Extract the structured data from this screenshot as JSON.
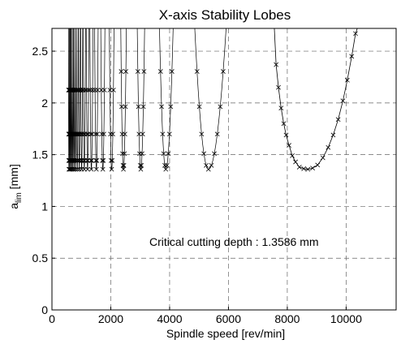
{
  "chart_data": {
    "type": "line",
    "title": "X-axis Stability Lobes",
    "xlabel": "Spindle speed [rev/min]",
    "ylabel_main": "a",
    "ylabel_sub": "lim",
    "ylabel_unit": "[mm]",
    "xlim": [
      0,
      11700
    ],
    "ylim": [
      0,
      2.72
    ],
    "xticks": [
      0,
      2000,
      4000,
      6000,
      8000,
      10000
    ],
    "yticks": [
      0,
      0.5,
      1,
      1.5,
      2,
      2.5
    ],
    "xtick_labels": [
      "0",
      "2000",
      "4000",
      "6000",
      "8000",
      "10000"
    ],
    "ytick_labels": [
      "0",
      "0.5",
      "1",
      "1.5",
      "2",
      "2.5"
    ],
    "grid": true,
    "grid_style": "dashed",
    "marker": "x",
    "min_depth": 1.3586,
    "annotation": "Critical cutting depth : 1.3586 mm",
    "lobes": [
      {
        "left": 4855,
        "center": 5320,
        "right": 5920
      },
      {
        "left": 3655,
        "center": 3870,
        "right": 4120
      },
      {
        "left": 2900,
        "center": 3020,
        "right": 3150
      },
      {
        "left": 2340,
        "center": 2430,
        "right": 2530
      },
      {
        "left": 1950,
        "center": 2030,
        "right": 2110
      },
      {
        "left": 1660,
        "center": 1730,
        "right": 1800
      },
      {
        "left": 1450,
        "center": 1510,
        "right": 1570
      },
      {
        "left": 1290,
        "center": 1340,
        "right": 1395
      },
      {
        "left": 1165,
        "center": 1210,
        "right": 1255
      },
      {
        "left": 1060,
        "center": 1100,
        "right": 1140
      },
      {
        "left": 975,
        "center": 1010,
        "right": 1045
      },
      {
        "left": 900,
        "center": 930,
        "right": 960
      },
      {
        "left": 835,
        "center": 865,
        "right": 893
      },
      {
        "left": 780,
        "center": 805,
        "right": 832
      },
      {
        "left": 732,
        "center": 755,
        "right": 778
      },
      {
        "left": 690,
        "center": 710,
        "right": 731
      },
      {
        "left": 652,
        "center": 670,
        "right": 690
      },
      {
        "left": 618,
        "center": 635,
        "right": 653
      },
      {
        "left": 588,
        "center": 603,
        "right": 620
      },
      {
        "left": 560,
        "center": 575,
        "right": 590
      }
    ],
    "big_lobe": {
      "points": [
        [
          7560,
          2.72
        ],
        [
          7620,
          2.37
        ],
        [
          7700,
          2.15
        ],
        [
          7790,
          1.95
        ],
        [
          7880,
          1.8
        ],
        [
          7960,
          1.69
        ],
        [
          8060,
          1.59
        ],
        [
          8170,
          1.49
        ],
        [
          8280,
          1.43
        ],
        [
          8410,
          1.38
        ],
        [
          8560,
          1.365
        ],
        [
          8700,
          1.3586
        ],
        [
          8860,
          1.37
        ],
        [
          9030,
          1.4
        ],
        [
          9210,
          1.47
        ],
        [
          9390,
          1.57
        ],
        [
          9560,
          1.69
        ],
        [
          9730,
          1.84
        ],
        [
          9890,
          2.02
        ],
        [
          10040,
          2.22
        ],
        [
          10190,
          2.45
        ],
        [
          10320,
          2.67
        ],
        [
          10380,
          2.72
        ]
      ]
    }
  }
}
